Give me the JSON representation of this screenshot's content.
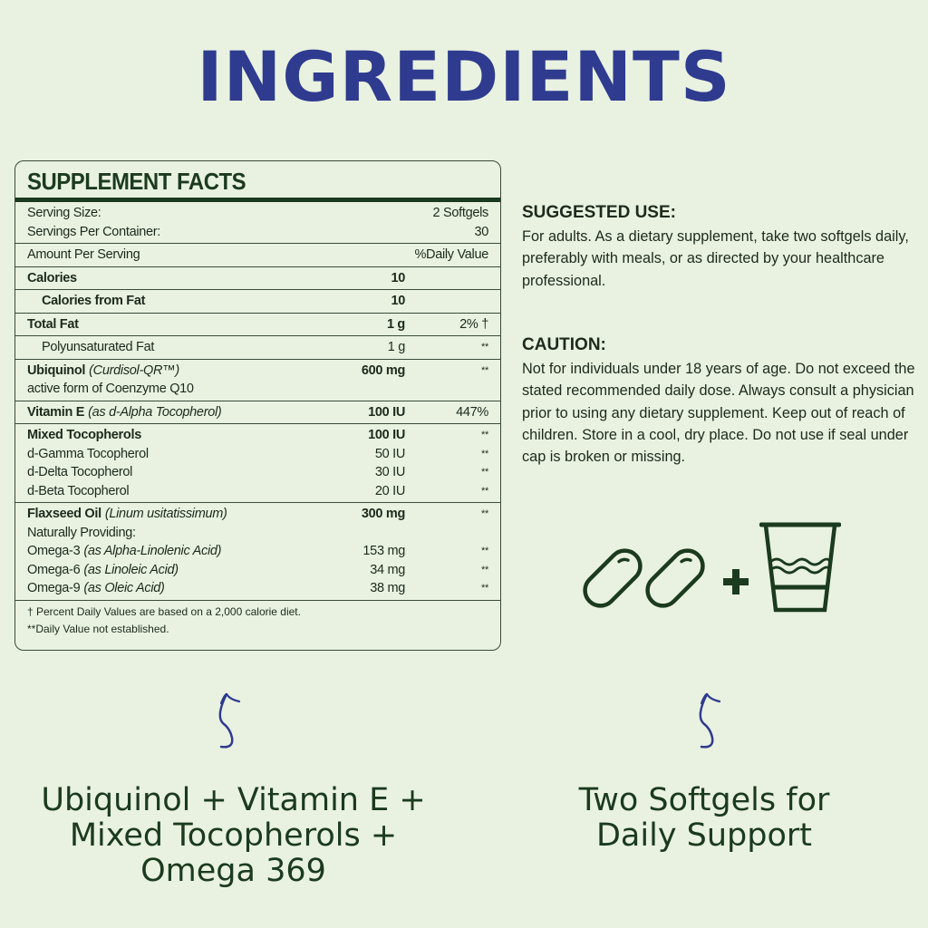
{
  "title": "INGREDIENTS",
  "facts": {
    "heading": "SUPPLEMENT FACTS",
    "sections": [
      [
        {
          "label": "Serving Size:",
          "amount": "",
          "dv": "2 Softgels"
        },
        {
          "label": "Servings Per Container:",
          "amount": "",
          "dv": "30"
        }
      ],
      [
        {
          "label": "Amount Per Serving",
          "amount": "",
          "dv": "%Daily Value"
        }
      ],
      [
        {
          "label": "Calories",
          "amount": "10",
          "dv": "",
          "bold": true
        }
      ],
      [
        {
          "label": "Calories from Fat",
          "amount": "10",
          "dv": "",
          "bold": true,
          "indent": true
        }
      ],
      [
        {
          "label": "Total Fat",
          "amount": "1 g",
          "dv": "2% †",
          "bold": true
        }
      ],
      [
        {
          "label": "Polyunsaturated Fat",
          "amount": "1 g",
          "dv": "**",
          "indent": true
        }
      ],
      [
        {
          "label": "Ubiquinol",
          "sub": "(Curdisol-QR™)",
          "amount": "600 mg",
          "dv": "**",
          "bold": true
        },
        {
          "label": "active form of Coenzyme Q10",
          "amount": "",
          "dv": ""
        }
      ],
      [
        {
          "label": "Vitamin E",
          "sub": "(as d-Alpha Tocopherol)",
          "amount": "100 IU",
          "dv": "447%",
          "bold": true
        }
      ],
      [
        {
          "label": "Mixed Tocopherols",
          "amount": "100 IU",
          "dv": "**",
          "bold": true
        },
        {
          "label": "d-Gamma Tocopherol",
          "amount": "50 IU",
          "dv": "**"
        },
        {
          "label": "d-Delta Tocopherol",
          "amount": "30 IU",
          "dv": "**"
        },
        {
          "label": "d-Beta Tocopherol",
          "amount": "20 IU",
          "dv": "**"
        }
      ],
      [
        {
          "label": "Flaxseed Oil",
          "sub": "(Linum usitatissimum)",
          "amount": "300 mg",
          "dv": "**",
          "bold": true
        },
        {
          "label": "Naturally Providing:",
          "amount": "",
          "dv": ""
        },
        {
          "label": "Omega-3",
          "sub": "(as Alpha-Linolenic Acid)",
          "amount": "153 mg",
          "dv": "**"
        },
        {
          "label": "Omega-6",
          "sub": "(as Linoleic Acid)",
          "amount": "34 mg",
          "dv": "**"
        },
        {
          "label": "Omega-9",
          "sub": "(as Oleic Acid)",
          "amount": "38 mg",
          "dv": "**"
        }
      ]
    ],
    "footnotes": [
      "† Percent Daily Values are based on a 2,000 calorie diet.",
      "**Daily Value not established."
    ]
  },
  "suggested_use": {
    "heading": "SUGGESTED USE:",
    "text": "For adults. As a dietary supplement, take two softgels daily, preferably with meals, or as directed by your healthcare professional."
  },
  "caution": {
    "heading": "CAUTION:",
    "text": "Not for individuals under 18 years of age. Do not exceed the stated recommended daily dose. Always consult a physician prior to using any dietary supplement. Keep out of reach of children. Store in a cool, dry place. Do not use if seal under cap is broken or missing."
  },
  "bottom": {
    "left": "Ubiquinol + Vitamin E + Mixed Tocopherols + Omega 369",
    "right": "Two Softgels for Daily Support"
  },
  "colors": {
    "title": "#2f3b8f",
    "dark_green": "#1b3a1e",
    "background": "#e9f2e0",
    "arrow": "#2f3b8f"
  },
  "icons": [
    "softgel-icon",
    "softgel-icon",
    "plus-icon",
    "water-glass-icon",
    "squiggle-arrow-icon"
  ]
}
